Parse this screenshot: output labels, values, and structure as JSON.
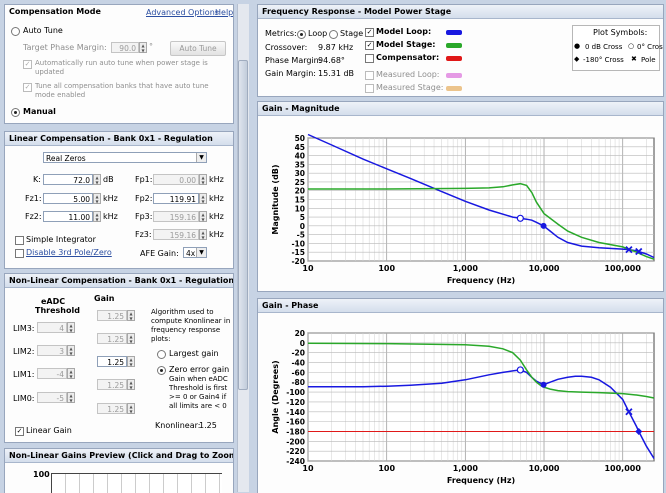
{
  "compensation_mode": {
    "title": "Compensation Mode",
    "advanced_label": "Advanced Options",
    "help_label": "Help",
    "auto_tune_label": "Auto Tune",
    "target_pm_label": "Target Phase Margin:",
    "target_pm_value": "90.0",
    "target_pm_unit": "°",
    "auto_tune_button": "Auto Tune",
    "auto_run_line1": "Automatically run auto tune when power stage is",
    "auto_run_line2": "updated",
    "tune_all_line1": "Tune all compensation banks that have auto tune",
    "tune_all_line2": "mode enabled",
    "manual_label": "Manual"
  },
  "linear_comp": {
    "title": "Linear Compensation - Bank 0x1 - Regulation",
    "mode_value": "Real Zeros",
    "k_label": "K:",
    "k_value": "72.0",
    "k_unit": "dB",
    "fz1_label": "Fz1:",
    "fz1_value": "5.00",
    "fz1_unit": "kHz",
    "fz2_label": "Fz2:",
    "fz2_value": "11.00",
    "fz2_unit": "kHz",
    "fp1_label": "Fp1:",
    "fp1_value": "0.00",
    "fp1_unit": "kHz",
    "fp2_label": "Fp2:",
    "fp2_value": "119.91",
    "fp2_unit": "kHz",
    "fp3_label": "Fp3:",
    "fp3_value": "159.16",
    "fp3_unit": "kHz",
    "fz3_label": "Fz3:",
    "fz3_value": "159.16",
    "fz3_unit": "kHz",
    "simple_integrator_label": "Simple Integrator",
    "disable_label": "Disable 3rd Pole/Zero",
    "afe_label": "AFE Gain:",
    "afe_value": "4x"
  },
  "nonlinear_comp": {
    "title": "Non-Linear Compensation - Bank 0x1 - Regulation",
    "eadc_header_line1": "eADC",
    "eadc_header_line2": "Threshold",
    "gain_header": "Gain",
    "gain_top_value": "1.25",
    "limits": [
      {
        "label": "LIM3:",
        "threshold": "4",
        "gain": "1.25"
      },
      {
        "label": "LIM2:",
        "threshold": "3",
        "gain": "1.25"
      },
      {
        "label": "LIM1:",
        "threshold": "-4",
        "gain": "1.25"
      },
      {
        "label": "LIM0:",
        "threshold": "-5",
        "gain": "1.25"
      }
    ],
    "center_gain_value": "1.25",
    "bottom_gain_value": "1.25",
    "algo_line1": "Algorithm used to",
    "algo_line2": "compute Knonlinear in",
    "algo_line3": "frequency response",
    "algo_line4": "plots:",
    "largest_gain_label": "Largest gain",
    "zero_error_label": "Zero error gain",
    "zero_error_line1": "Gain when eADC",
    "zero_error_line2": "Threshold is first",
    "zero_error_line3": ">= 0 or Gain4 if",
    "zero_error_line4": "all limits are < 0",
    "linear_gain_label": "Linear Gain",
    "knonlinear_label": "Knonlinear:",
    "knonlinear_value": "1.25"
  },
  "preview": {
    "title": "Non-Linear Gains Preview (Click and Drag to Zoom)",
    "y_top_label": "100"
  },
  "freq_response": {
    "title": "Frequency Response - Model Power Stage",
    "metrics_label": "Metrics:",
    "loop_label": "Loop",
    "stage_label": "Stage",
    "crossover_label": "Crossover:",
    "crossover_value": "9.87 kHz",
    "phase_margin_label": "Phase Margin:",
    "phase_margin_value": "94.68°",
    "gain_margin_label": "Gain Margin:",
    "gain_margin_value": "15.31 dB",
    "model_loop_label": "Model Loop:",
    "model_stage_label": "Model Stage:",
    "compensator_label": "Compensator:",
    "measured_loop_label": "Measured Loop:",
    "measured_stage_label": "Measured Stage:",
    "colors": {
      "model_loop": "#1818e0",
      "model_stage": "#2aa82a",
      "compensator": "#e01818",
      "measured_loop": "#e59ae5",
      "measured_stage": "#ecc48c"
    },
    "plot_symbols_title": "Plot Symbols:",
    "sym_0db": "0 dB Cross",
    "sym_0deg": "0° Cross",
    "sym_180": "-180° Cross",
    "sym_pole": "Pole"
  },
  "chart_data": [
    {
      "type": "line",
      "title": "Gain - Magnitude",
      "xlabel": "Frequency (Hz)",
      "ylabel": "Magnitude (dB)",
      "xscale": "log",
      "xlim": [
        10,
        250000
      ],
      "ylim": [
        -20,
        50
      ],
      "xticks": [
        10,
        100,
        1000,
        10000,
        100000
      ],
      "xtick_labels": [
        "10",
        "100",
        "1,000",
        "10,000",
        "100,000"
      ],
      "yticks": [
        50,
        45,
        40,
        35,
        30,
        25,
        20,
        15,
        10,
        5,
        0,
        -5,
        -10,
        -15,
        -20
      ],
      "grid": true,
      "series": [
        {
          "color": "#1818e0",
          "x": [
            10,
            20,
            50,
            100,
            200,
            500,
            1000,
            2000,
            4000,
            5000,
            6000,
            7000,
            8000,
            9870,
            12000,
            15000,
            20000,
            30000,
            50000,
            100000,
            120000,
            150000,
            200000,
            250000
          ],
          "y": [
            52,
            46,
            38,
            32.5,
            27,
            19.5,
            14,
            9,
            5,
            4.3,
            3.8,
            3.2,
            2,
            0,
            -3,
            -6.5,
            -9.5,
            -11.5,
            -12.5,
            -13.2,
            -13.5,
            -14.2,
            -16,
            -18
          ]
        },
        {
          "color": "#2aa82a",
          "x": [
            10,
            100,
            1000,
            2000,
            3000,
            4000,
            5000,
            6000,
            7000,
            8000,
            10000,
            15000,
            20000,
            30000,
            50000,
            100000,
            150000,
            200000,
            250000
          ],
          "y": [
            21,
            21,
            21.3,
            21.6,
            22.2,
            23.3,
            24,
            23,
            19,
            13.5,
            7,
            1,
            -3,
            -6.5,
            -9.5,
            -12,
            -15,
            -17.5,
            -19
          ]
        }
      ],
      "markers": [
        {
          "x": 5000,
          "y": 4.3,
          "shape": "open-circle",
          "color": "#1818e0"
        },
        {
          "x": 9870,
          "y": 0,
          "shape": "filled-circle",
          "color": "#1818e0"
        },
        {
          "x": 120000,
          "y": -13.5,
          "shape": "x",
          "color": "#1818e0"
        },
        {
          "x": 160000,
          "y": -14.6,
          "shape": "x",
          "color": "#1818e0"
        }
      ]
    },
    {
      "type": "line",
      "title": "Gain - Phase",
      "xlabel": "Frequency (Hz)",
      "ylabel": "Angle (Degrees)",
      "xscale": "log",
      "xlim": [
        10,
        250000
      ],
      "ylim": [
        -240,
        20
      ],
      "xticks": [
        10,
        100,
        1000,
        10000,
        100000
      ],
      "xtick_labels": [
        "10",
        "100",
        "1,000",
        "10,000",
        "100,000"
      ],
      "yticks": [
        20,
        0,
        -20,
        -40,
        -60,
        -80,
        -100,
        -120,
        -140,
        -160,
        -180,
        -200,
        -220,
        -240
      ],
      "grid": true,
      "reference_line": {
        "y": -180,
        "color": "#e01818"
      },
      "series": [
        {
          "color": "#1818e0",
          "x": [
            10,
            50,
            100,
            200,
            500,
            1000,
            2000,
            3000,
            4000,
            5000,
            6000,
            7000,
            8000,
            9870,
            12000,
            15000,
            20000,
            25000,
            30000,
            40000,
            50000,
            70000,
            100000,
            120000,
            150000,
            160000,
            200000,
            250000
          ],
          "y": [
            -89,
            -89,
            -88,
            -86,
            -82,
            -75,
            -65,
            -60,
            -57,
            -55,
            -60,
            -70,
            -78,
            -85,
            -80,
            -74,
            -70,
            -68,
            -68,
            -70,
            -75,
            -90,
            -115,
            -140,
            -170,
            -180,
            -210,
            -235
          ]
        },
        {
          "color": "#2aa82a",
          "x": [
            10,
            100,
            1000,
            2000,
            3000,
            4000,
            5000,
            6000,
            7000,
            8000,
            9000,
            10000,
            12000,
            15000,
            20000,
            30000,
            50000,
            100000,
            150000,
            200000,
            250000
          ],
          "y": [
            -1,
            -1.5,
            -4,
            -7,
            -12,
            -20,
            -35,
            -55,
            -70,
            -80,
            -86,
            -90,
            -94,
            -97,
            -99,
            -100,
            -101,
            -103,
            -106,
            -109,
            -112
          ]
        }
      ],
      "markers": [
        {
          "x": 5000,
          "y": -55,
          "shape": "open-circle",
          "color": "#1818e0"
        },
        {
          "x": 9870,
          "y": -85,
          "shape": "filled-circle",
          "color": "#1818e0"
        },
        {
          "x": 120000,
          "y": -140,
          "shape": "x",
          "color": "#1818e0"
        },
        {
          "x": 160000,
          "y": -180,
          "shape": "filled-diamond",
          "color": "#1818e0"
        }
      ]
    }
  ]
}
